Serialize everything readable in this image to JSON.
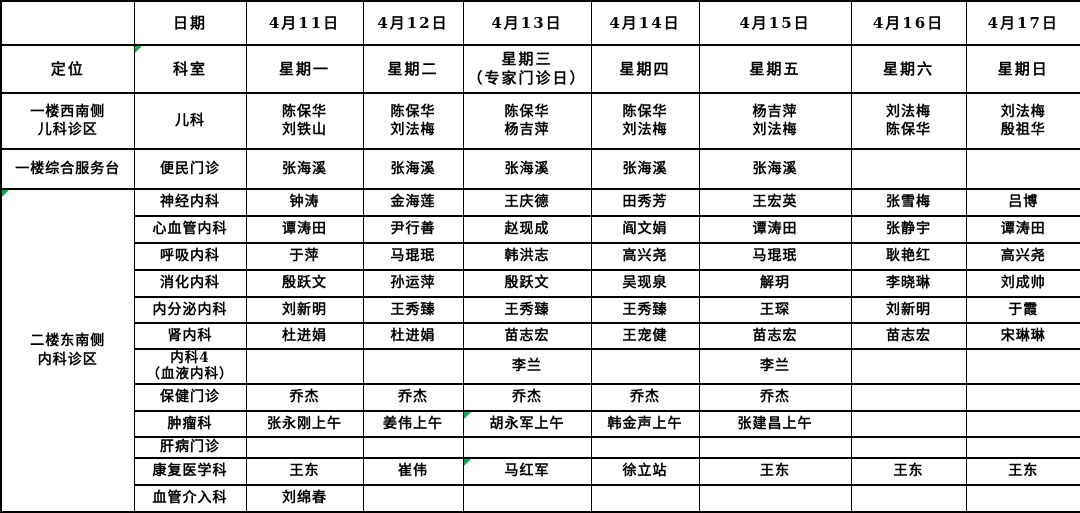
{
  "table": {
    "corner": "",
    "date_label": "日期",
    "location_label": "定位",
    "department_label": "科室",
    "dates": [
      "4月11日",
      "4月12日",
      "4月13日",
      "4月14日",
      "4月15日",
      "4月16日",
      "4月17日"
    ],
    "weekdays": [
      "星期一",
      "星期二",
      "星期三\n（专家门诊日）",
      "星期四",
      "星期五",
      "星期六",
      "星期日"
    ]
  },
  "sections": [
    {
      "location": "一楼西南侧\n儿科诊区",
      "rows": [
        {
          "department": "儿科",
          "cells": [
            "陈保华\n刘铁山",
            "陈保华\n刘法梅",
            "陈保华\n杨吉萍",
            "陈保华\n刘法梅",
            "杨吉萍\n刘法梅",
            "刘法梅\n陈保华",
            "刘法梅\n殷祖华"
          ]
        }
      ]
    },
    {
      "location": "一楼综合服务台",
      "rows": [
        {
          "department": "便民门诊",
          "cells": [
            "张海溪",
            "张海溪",
            "张海溪",
            "张海溪",
            "张海溪",
            "",
            ""
          ]
        }
      ]
    },
    {
      "location": "二楼东南侧\n内科诊区",
      "rows": [
        {
          "department": "神经内科",
          "cells": [
            "钟涛",
            "金海莲",
            "王庆德",
            "田秀芳",
            "王宏英",
            "张雪梅",
            "吕博"
          ]
        },
        {
          "department": "心血管内科",
          "cells": [
            "谭涛田",
            "尹行善",
            "赵现成",
            "阎文娟",
            "谭涛田",
            "张静宇",
            "谭涛田"
          ]
        },
        {
          "department": "呼吸内科",
          "cells": [
            "于萍",
            "马琨珉",
            "韩洪志",
            "高兴尧",
            "马琨珉",
            "耿艳红",
            "高兴尧"
          ]
        },
        {
          "department": "消化内科",
          "cells": [
            "殷跃文",
            "孙运萍",
            "殷跃文",
            "吴现泉",
            "解玥",
            "李晓琳",
            "刘成帅"
          ]
        },
        {
          "department": "内分泌内科",
          "cells": [
            "刘新明",
            "王秀臻",
            "王秀臻",
            "王秀臻",
            "王琛",
            "刘新明",
            "于霞"
          ]
        },
        {
          "department": "肾内科",
          "cells": [
            "杜进娟",
            "杜进娟",
            "苗志宏",
            "王宠健",
            "苗志宏",
            "苗志宏",
            "宋琳琳"
          ]
        },
        {
          "department": "内科4\n（血液内科）",
          "cells": [
            "",
            "",
            "李兰",
            "",
            "李兰",
            "",
            ""
          ]
        },
        {
          "department": "保健门诊",
          "cells": [
            "乔杰",
            "乔杰",
            "乔杰",
            "乔杰",
            "乔杰",
            "",
            ""
          ]
        },
        {
          "department": "肿瘤科",
          "cells": [
            "张永刚上午",
            "姜伟上午",
            "胡永军上午",
            "韩金声上午",
            "张建昌上午",
            "",
            ""
          ]
        },
        {
          "department": "肝病门诊",
          "cells": [
            "",
            "",
            "",
            "",
            "",
            "",
            ""
          ]
        },
        {
          "department": "康复医学科",
          "cells": [
            "王东",
            "崔伟",
            "马红军",
            "徐立站",
            "王东",
            "王东",
            "王东"
          ]
        },
        {
          "department": "血管介入科",
          "cells": [
            "刘绵春",
            "",
            "",
            "",
            "",
            "",
            ""
          ]
        }
      ]
    }
  ],
  "markers": {
    "marker_color": "#00b050",
    "department_header_marker": true,
    "section_location_markers": [
      2
    ],
    "cell_markers": [
      {
        "section": 2,
        "row": 8,
        "day": 2
      },
      {
        "section": 2,
        "row": 10,
        "day": 2
      }
    ]
  }
}
